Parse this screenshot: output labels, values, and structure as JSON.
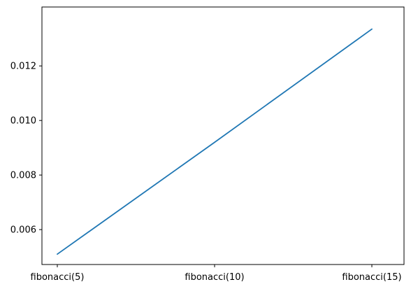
{
  "chart_data": {
    "type": "line",
    "categories": [
      "fibonacci(5)",
      "fibonacci(10)",
      "fibonacci(15)"
    ],
    "series": [
      {
        "values": [
          0.0051,
          0.0092,
          0.01335
        ]
      }
    ],
    "ylim": [
      0.00472,
      0.01416
    ],
    "yticks": [
      "0.006",
      "0.008",
      "0.010",
      "0.012"
    ],
    "ytick_values": [
      0.006,
      0.008,
      0.01,
      0.012
    ],
    "grid": false,
    "line_color": "#1f77b4"
  }
}
